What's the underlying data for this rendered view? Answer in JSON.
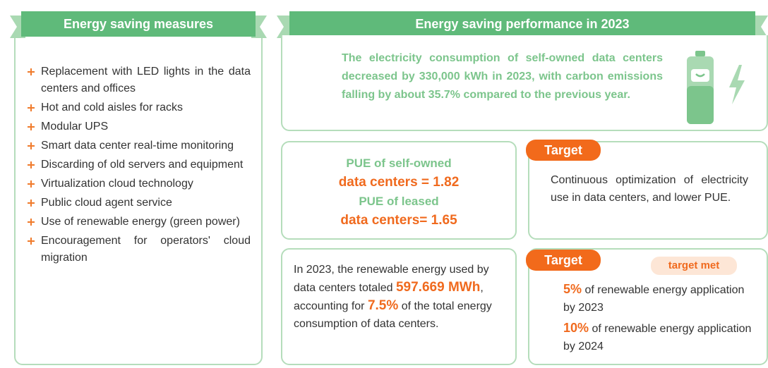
{
  "measures": {
    "title": "Energy saving measures",
    "items": [
      "Replacement with LED lights in the data centers and offices",
      "Hot and cold aisles for racks",
      "Modular UPS",
      "Smart data center real-time monitoring",
      "Discarding of old servers and equipment",
      "Virtualization cloud technology",
      "Public cloud agent service",
      "Use of renewable energy (green power)",
      "Encouragement for operators' cloud migration"
    ]
  },
  "performance": {
    "title": "Energy saving performance in 2023",
    "summary": "The electricity consumption of self-owned data centers decreased by 330,000 kWh in 2023, with carbon emissions falling by about 35.7% compared to the previous year."
  },
  "pue": {
    "lines": [
      {
        "text": "PUE of self-owned",
        "style": "green"
      },
      {
        "text": "data centers = 1.82",
        "style": "orange"
      },
      {
        "text": "PUE of leased",
        "style": "green"
      },
      {
        "text": "data centers= 1.65",
        "style": "orange"
      }
    ]
  },
  "target_pue": {
    "badge": "Target",
    "text": "Continuous optimization of electricity use in data centers, and lower PUE."
  },
  "renewable": {
    "parts": [
      {
        "text": "In 2023, the renewable energy used by data centers totaled ",
        "style": "plain"
      },
      {
        "text": "597.669 MWh",
        "style": "big"
      },
      {
        "text": ", accounting for ",
        "style": "plain"
      },
      {
        "text": "7.5%",
        "style": "big"
      },
      {
        "text": " of the total energy consumption of data centers.",
        "style": "plain"
      }
    ]
  },
  "target_renewable": {
    "badge": "Target",
    "status": "target met",
    "goals": [
      {
        "value": "5%",
        "text": " of renewable energy application by 2023"
      },
      {
        "value": "10%",
        "text": " of renewable energy application by 2024"
      }
    ]
  }
}
